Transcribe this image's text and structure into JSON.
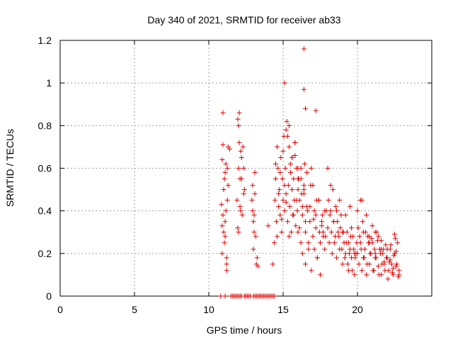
{
  "chart_data": {
    "type": "scatter",
    "title": "Day 340 of 2021, SRMTID for receiver ab33",
    "xlabel": "GPS time / hours",
    "ylabel": "SRMTID / TECUs",
    "xlim": [
      0,
      25
    ],
    "ylim": [
      0,
      1.2
    ],
    "xticks": [
      0,
      5,
      10,
      15,
      20
    ],
    "yticks": [
      0,
      0.2,
      0.4,
      0.6,
      0.8,
      1,
      1.2
    ],
    "xtick_labels": [
      "0",
      "5",
      "10",
      "15",
      "20"
    ],
    "ytick_labels": [
      "0",
      "0.2",
      "0.4",
      "0.6",
      "0.8",
      "1",
      "1.2"
    ],
    "grid": true,
    "marker": "+",
    "series_color": "#dd0000",
    "series": [
      {
        "name": "SRMTID",
        "x": [
          10.85,
          10.9,
          10.95,
          11.0,
          11.05,
          11.1,
          11.15,
          11.2,
          11.25,
          11.3,
          10.9,
          11.0,
          11.1,
          11.2,
          11.3,
          10.95,
          11.05,
          11.15,
          11.25,
          10.9,
          11.1,
          11.2,
          11.9,
          11.95,
          12.0,
          12.05,
          12.1,
          12.15,
          12.2,
          12.3,
          12.35,
          12.4,
          11.95,
          12.05,
          12.15,
          12.25,
          12.35,
          12.0,
          12.1,
          12.2,
          12.9,
          12.95,
          13.0,
          13.05,
          13.1,
          13.15,
          13.2,
          13.0,
          13.1,
          12.95,
          13.05,
          13.25,
          13.3,
          14.0,
          14.3,
          14.4,
          14.45,
          14.5,
          14.55,
          14.6,
          14.65,
          14.7,
          14.75,
          14.8,
          14.85,
          14.9,
          14.95,
          15.0,
          15.05,
          15.1,
          15.15,
          15.2,
          15.25,
          15.3,
          15.35,
          15.4,
          15.45,
          15.5,
          15.55,
          15.6,
          15.65,
          15.7,
          15.75,
          15.8,
          15.85,
          15.9,
          15.95,
          16.0,
          14.5,
          14.6,
          14.7,
          14.8,
          14.9,
          15.0,
          15.1,
          15.2,
          15.3,
          15.4,
          15.5,
          15.6,
          15.7,
          15.8,
          15.9,
          16.0,
          16.1,
          16.2,
          16.3,
          16.4,
          16.5,
          15.2,
          15.4,
          15.6,
          15.8,
          16.0,
          16.2,
          16.4,
          16.6,
          16.8,
          17.0,
          17.2,
          17.4,
          17.6,
          17.8,
          16.0,
          16.1,
          16.2,
          16.3,
          16.4,
          16.5,
          16.6,
          16.7,
          16.8,
          16.9,
          17.0,
          17.1,
          17.2,
          17.3,
          17.4,
          17.5,
          17.6,
          17.7,
          17.8,
          17.9,
          16.05,
          16.25,
          16.45,
          16.65,
          16.85,
          17.05,
          17.25,
          17.45,
          17.65,
          17.85,
          16.3,
          16.5,
          16.7,
          16.9,
          17.1,
          17.3,
          17.5,
          17.7,
          18.0,
          18.1,
          18.2,
          18.3,
          18.4,
          18.5,
          18.6,
          18.7,
          18.8,
          18.9,
          19.0,
          19.1,
          19.2,
          19.3,
          19.4,
          19.5,
          19.6,
          19.7,
          19.8,
          19.9,
          18.05,
          18.15,
          18.25,
          18.35,
          18.45,
          18.55,
          18.65,
          18.75,
          18.85,
          18.95,
          19.05,
          19.15,
          19.25,
          19.35,
          19.45,
          19.55,
          19.65,
          19.75,
          19.85,
          19.95,
          18.0,
          18.2,
          18.4,
          18.6,
          18.8,
          19.0,
          19.2,
          19.4,
          19.6,
          19.8,
          20.0,
          20.1,
          20.2,
          20.3,
          20.4,
          20.5,
          20.6,
          20.7,
          20.8,
          20.9,
          21.0,
          21.1,
          21.2,
          21.3,
          21.4,
          21.5,
          21.6,
          21.7,
          21.8,
          21.9,
          20.05,
          20.15,
          20.25,
          20.35,
          20.45,
          20.55,
          20.65,
          20.75,
          20.85,
          20.95,
          21.05,
          21.15,
          21.25,
          21.35,
          21.45,
          21.55,
          21.65,
          21.75,
          21.85,
          21.95,
          20.0,
          20.2,
          20.4,
          20.6,
          20.8,
          21.0,
          21.2,
          21.4,
          21.6,
          21.8,
          22.0,
          22.1,
          22.2,
          22.3,
          22.4,
          22.5,
          22.6,
          22.7,
          22.8,
          22.05,
          22.15,
          22.25,
          22.35,
          22.45,
          22.55,
          22.65,
          22.75,
          22.0,
          22.2,
          22.4,
          22.6,
          22.8,
          16.4,
          16.4,
          15.1,
          16.5,
          17.2,
          12.0,
          10.95,
          11.4,
          19.5,
          20.3,
          20.8,
          21.2,
          21.6,
          22.5,
          10.8,
          11.1,
          11.5,
          11.6,
          11.7,
          11.8,
          11.9,
          12.0,
          12.1,
          12.2,
          12.4,
          12.5,
          12.6,
          12.7,
          12.8,
          13.0,
          13.1,
          13.2,
          13.3,
          13.4,
          13.5,
          13.6,
          13.7,
          13.8,
          13.9,
          14.0,
          14.1,
          14.2,
          14.3,
          14.4
        ],
        "y": [
          0.43,
          0.2,
          0.38,
          0.3,
          0.55,
          0.35,
          0.62,
          0.12,
          0.45,
          0.7,
          0.64,
          0.5,
          0.28,
          0.18,
          0.52,
          0.86,
          0.25,
          0.4,
          0.6,
          0.33,
          0.58,
          0.15,
          0.45,
          0.32,
          0.6,
          0.72,
          0.55,
          0.4,
          0.65,
          0.7,
          0.6,
          0.5,
          0.83,
          0.86,
          0.68,
          0.38,
          0.48,
          0.3,
          0.42,
          0.55,
          0.45,
          0.52,
          0.35,
          0.38,
          0.48,
          0.28,
          0.15,
          0.22,
          0.58,
          0.4,
          0.3,
          0.18,
          0.14,
          0.33,
          0.15,
          0.25,
          0.45,
          0.55,
          0.35,
          0.28,
          0.6,
          0.42,
          0.5,
          0.38,
          0.65,
          0.3,
          0.55,
          0.45,
          0.75,
          0.4,
          0.6,
          0.48,
          0.82,
          0.35,
          0.52,
          0.7,
          0.42,
          0.58,
          0.3,
          0.65,
          0.38,
          0.55,
          0.45,
          0.72,
          0.33,
          0.6,
          0.4,
          0.5,
          0.62,
          0.7,
          0.48,
          0.58,
          0.36,
          0.68,
          0.52,
          0.44,
          0.75,
          0.28,
          0.62,
          0.5,
          0.38,
          0.66,
          0.45,
          0.55,
          0.32,
          0.6,
          0.42,
          0.5,
          0.35,
          0.78,
          0.8,
          0.65,
          0.72,
          0.6,
          0.55,
          0.48,
          0.58,
          0.42,
          0.52,
          0.38,
          0.45,
          0.33,
          0.4,
          0.3,
          0.45,
          0.25,
          0.38,
          0.52,
          0.3,
          0.42,
          0.22,
          0.35,
          0.6,
          0.28,
          0.4,
          0.32,
          0.18,
          0.45,
          0.25,
          0.35,
          0.3,
          0.22,
          0.4,
          0.55,
          0.48,
          0.62,
          0.4,
          0.52,
          0.36,
          0.45,
          0.3,
          0.38,
          0.28,
          0.2,
          0.15,
          0.25,
          0.12,
          0.22,
          0.18,
          0.1,
          0.28,
          0.32,
          0.25,
          0.4,
          0.2,
          0.35,
          0.28,
          0.18,
          0.3,
          0.22,
          0.38,
          0.15,
          0.25,
          0.2,
          0.3,
          0.12,
          0.22,
          0.18,
          0.28,
          0.1,
          0.2,
          0.45,
          0.38,
          0.3,
          0.5,
          0.25,
          0.42,
          0.35,
          0.28,
          0.32,
          0.22,
          0.3,
          0.18,
          0.25,
          0.15,
          0.2,
          0.28,
          0.12,
          0.22,
          0.18,
          0.25,
          0.6,
          0.52,
          0.35,
          0.4,
          0.45,
          0.3,
          0.38,
          0.25,
          0.32,
          0.2,
          0.2,
          0.15,
          0.25,
          0.12,
          0.18,
          0.22,
          0.1,
          0.28,
          0.15,
          0.2,
          0.25,
          0.12,
          0.18,
          0.3,
          0.14,
          0.22,
          0.1,
          0.2,
          0.16,
          0.24,
          0.32,
          0.28,
          0.22,
          0.35,
          0.18,
          0.3,
          0.15,
          0.25,
          0.2,
          0.27,
          0.12,
          0.22,
          0.18,
          0.26,
          0.1,
          0.2,
          0.15,
          0.22,
          0.12,
          0.18,
          0.4,
          0.45,
          0.3,
          0.38,
          0.25,
          0.33,
          0.2,
          0.28,
          0.22,
          0.15,
          0.18,
          0.12,
          0.22,
          0.15,
          0.1,
          0.2,
          0.14,
          0.25,
          0.12,
          0.08,
          0.16,
          0.24,
          0.11,
          0.19,
          0.27,
          0.15,
          0.09,
          0.22,
          0.17,
          0.13,
          0.21,
          0.1,
          1.16,
          0.97,
          1.0,
          0.88,
          0.87,
          0.8,
          0.71,
          0.69,
          0.42,
          0.45,
          0.28,
          0.3,
          0.26,
          0.29,
          0,
          0,
          0,
          0,
          0,
          0,
          0,
          0,
          0,
          0,
          0,
          0,
          0,
          0,
          0,
          0,
          0,
          0,
          0,
          0,
          0,
          0,
          0,
          0,
          0,
          0,
          0,
          0,
          0,
          0
        ]
      }
    ]
  }
}
